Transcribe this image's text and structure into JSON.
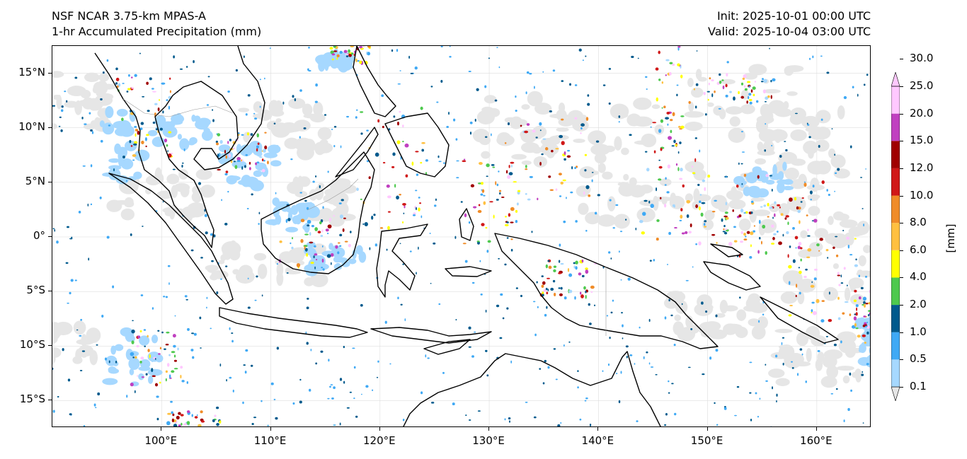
{
  "header": {
    "model": "NSF NCAR 3.75-km MPAS-A",
    "field": "1-hr Accumulated Precipitation (mm)",
    "init": "Init: 2025-10-01 00:00 UTC",
    "valid": "Valid: 2025-10-04 03:00 UTC"
  },
  "map": {
    "extent": {
      "lon_min": 90,
      "lon_max": 165,
      "lat_min": -17.5,
      "lat_max": 17.5
    },
    "lat_ticks": [
      {
        "value": 15,
        "label": "15°N"
      },
      {
        "value": 10,
        "label": "10°N"
      },
      {
        "value": 5,
        "label": "5°N"
      },
      {
        "value": 0,
        "label": "0°"
      },
      {
        "value": -5,
        "label": "5°S"
      },
      {
        "value": -10,
        "label": "10°S"
      },
      {
        "value": -15,
        "label": "15°S"
      }
    ],
    "lon_ticks": [
      {
        "value": 100,
        "label": "100°E"
      },
      {
        "value": 110,
        "label": "110°E"
      },
      {
        "value": 120,
        "label": "120°E"
      },
      {
        "value": 130,
        "label": "130°E"
      },
      {
        "value": 140,
        "label": "140°E"
      },
      {
        "value": 150,
        "label": "150°E"
      },
      {
        "value": 160,
        "label": "160°E"
      }
    ],
    "grid": true,
    "coastline_color": "#000000",
    "border_color": "#9a9a9a"
  },
  "colorbar": {
    "unit": "[mm]",
    "extend": "both",
    "levels": [
      {
        "label": "0.1",
        "color": "#e6e6e6"
      },
      {
        "label": "0.5",
        "color": "#a6d8ff"
      },
      {
        "label": "1.0",
        "color": "#3fa9f5"
      },
      {
        "label": "2.0",
        "color": "#005a8d"
      },
      {
        "label": "4.0",
        "color": "#4ec94e"
      },
      {
        "label": "6.0",
        "color": "#ffff00"
      },
      {
        "label": "8.0",
        "color": "#ffc040"
      },
      {
        "label": "10.0",
        "color": "#f08c28"
      },
      {
        "label": "12.0",
        "color": "#d01818"
      },
      {
        "label": "15.0",
        "color": "#a00000"
      },
      {
        "label": "20.0",
        "color": "#c040c0"
      },
      {
        "label": "25.0",
        "color": "#ffc8ff"
      },
      {
        "label": "30.0",
        "color": ""
      }
    ]
  }
}
